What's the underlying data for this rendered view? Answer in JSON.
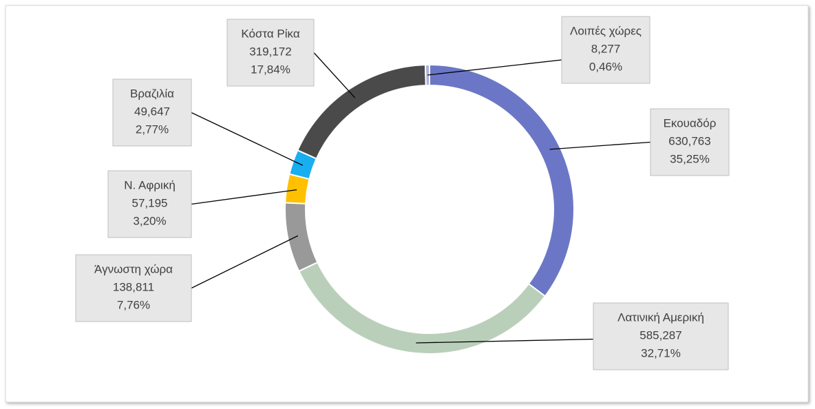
{
  "chart_data": {
    "type": "donut",
    "categories": [
      "Εκουαδόρ",
      "Λατινική Αμερική",
      "Άγνωστη χώρα",
      "Ν. Αφρική",
      "Βραζιλία",
      "Κόστα Ρίκα",
      "Λοιπές χώρες"
    ],
    "values": [
      630.763,
      585.287,
      138.811,
      57.195,
      49.647,
      319.172,
      8.277
    ],
    "value_labels": [
      "630,763",
      "585,287",
      "138,811",
      "57,195",
      "49,647",
      "319,172",
      "8,277"
    ],
    "percents": [
      35.25,
      32.71,
      7.76,
      3.2,
      2.77,
      17.84,
      0.46
    ],
    "percent_labels": [
      "35,25%",
      "32,71%",
      "7,76%",
      "3,20%",
      "2,77%",
      "17,84%",
      "0,46%"
    ],
    "colors": [
      "#6b77c6",
      "#bacfba",
      "#999999",
      "#ffc000",
      "#18aef0",
      "#4a4a4a",
      "#a9b2d6"
    ]
  }
}
